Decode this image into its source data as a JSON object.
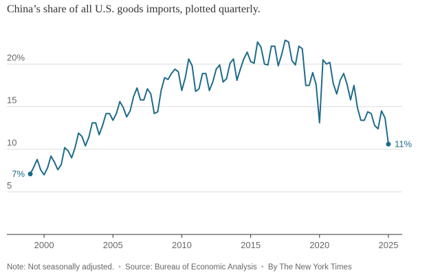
{
  "chart_data": {
    "type": "line",
    "title": "China’s share of all U.S. goods imports, plotted quarterly.",
    "xlabel": "",
    "ylabel": "",
    "xlim": [
      1997.3,
      2026.0
    ],
    "ylim": [
      0,
      23.5
    ],
    "y_ticks": [
      5,
      10,
      15,
      20
    ],
    "y_tick_labels": [
      "5",
      "10",
      "15",
      "20%"
    ],
    "x_ticks": [
      2000,
      2005,
      2010,
      2015,
      2020,
      2025
    ],
    "x_tick_labels": [
      "2000",
      "2005",
      "2010",
      "2015",
      "2020",
      "2025"
    ],
    "grid": true,
    "series": [
      {
        "name": "China share of U.S. goods imports (%)",
        "color": "#1d6a8a",
        "start_label": "7%",
        "end_label": "11%",
        "x": [
          1999.0,
          1999.25,
          1999.5,
          1999.75,
          2000.0,
          2000.25,
          2000.5,
          2000.75,
          2001.0,
          2001.25,
          2001.5,
          2001.75,
          2002.0,
          2002.25,
          2002.5,
          2002.75,
          2003.0,
          2003.25,
          2003.5,
          2003.75,
          2004.0,
          2004.25,
          2004.5,
          2004.75,
          2005.0,
          2005.25,
          2005.5,
          2005.75,
          2006.0,
          2006.25,
          2006.5,
          2006.75,
          2007.0,
          2007.25,
          2007.5,
          2007.75,
          2008.0,
          2008.25,
          2008.5,
          2008.75,
          2009.0,
          2009.25,
          2009.5,
          2009.75,
          2010.0,
          2010.25,
          2010.5,
          2010.75,
          2011.0,
          2011.25,
          2011.5,
          2011.75,
          2012.0,
          2012.25,
          2012.5,
          2012.75,
          2013.0,
          2013.25,
          2013.5,
          2013.75,
          2014.0,
          2014.25,
          2014.5,
          2014.75,
          2015.0,
          2015.25,
          2015.5,
          2015.75,
          2016.0,
          2016.25,
          2016.5,
          2016.75,
          2017.0,
          2017.25,
          2017.5,
          2017.75,
          2018.0,
          2018.25,
          2018.5,
          2018.75,
          2019.0,
          2019.25,
          2019.5,
          2019.75,
          2020.0,
          2020.25,
          2020.5,
          2020.75,
          2021.0,
          2021.25,
          2021.5,
          2021.75,
          2022.0,
          2022.25,
          2022.5,
          2022.75,
          2023.0,
          2023.25,
          2023.5,
          2023.75,
          2024.0,
          2024.25,
          2024.5,
          2024.75,
          2025.0
        ],
        "values": [
          7.1,
          7.9,
          8.8,
          7.6,
          7.0,
          7.8,
          9.2,
          8.5,
          7.6,
          8.2,
          10.2,
          9.8,
          9.0,
          10.2,
          11.9,
          11.5,
          10.4,
          11.4,
          13.1,
          13.1,
          11.7,
          12.8,
          14.2,
          14.2,
          13.4,
          14.2,
          15.6,
          14.9,
          13.8,
          14.5,
          16.2,
          17.2,
          15.8,
          15.8,
          17.1,
          16.5,
          14.2,
          14.4,
          16.9,
          18.4,
          18.2,
          18.9,
          19.4,
          19.1,
          16.9,
          18.4,
          20.6,
          19.8,
          16.8,
          17.1,
          18.9,
          18.9,
          16.9,
          17.9,
          19.4,
          19.9,
          17.9,
          18.3,
          20.1,
          20.6,
          18.1,
          19.4,
          20.6,
          21.4,
          20.3,
          20.1,
          22.6,
          22.0,
          20.0,
          19.9,
          22.1,
          22.1,
          19.8,
          21.1,
          22.8,
          22.6,
          20.4,
          19.9,
          22.1,
          21.8,
          17.5,
          17.5,
          19.0,
          17.6,
          13.1,
          20.5,
          20.0,
          20.2,
          17.7,
          16.5,
          18.1,
          18.9,
          17.6,
          15.8,
          17.5,
          14.9,
          13.4,
          13.4,
          14.4,
          14.2,
          12.8,
          12.4,
          14.5,
          13.7,
          10.6
        ]
      }
    ]
  },
  "footer": {
    "note": "Note: Not seasonally adjusted.",
    "source": "Source: Bureau of Economic Analysis",
    "byline": "By The New York Times",
    "separator": "•"
  }
}
